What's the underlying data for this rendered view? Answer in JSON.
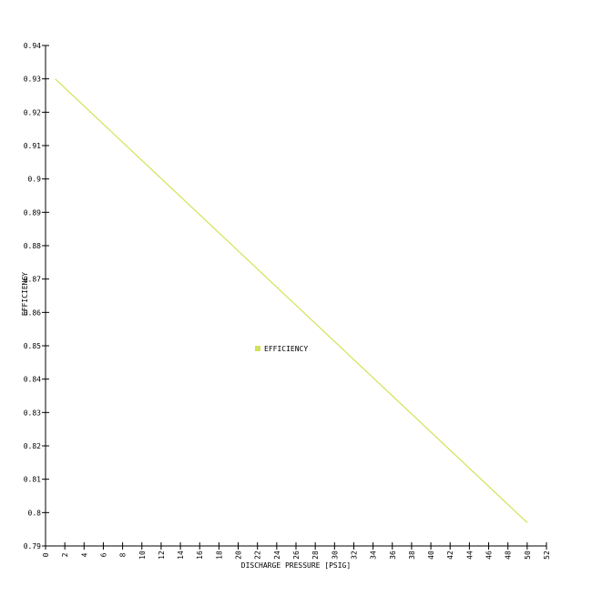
{
  "chart_data": {
    "type": "line",
    "title": "",
    "xlabel": "DISCHARGE PRESSURE [PSIG]",
    "ylabel": "EFFICIENCY",
    "xlim": [
      0,
      52
    ],
    "ylim": [
      0.79,
      0.94
    ],
    "x_ticks": [
      0,
      2,
      4,
      6,
      8,
      10,
      12,
      14,
      16,
      18,
      20,
      22,
      24,
      26,
      28,
      30,
      32,
      34,
      36,
      38,
      40,
      42,
      44,
      46,
      48,
      50,
      52
    ],
    "y_ticks": [
      0.79,
      0.8,
      0.81,
      0.82,
      0.83,
      0.84,
      0.85,
      0.86,
      0.87,
      0.88,
      0.89,
      0.9,
      0.91,
      0.92,
      0.93,
      0.94
    ],
    "x_tick_labels": [
      "0",
      "2",
      "4",
      "6",
      "8",
      "10",
      "12",
      "14",
      "16",
      "18",
      "20",
      "22",
      "24",
      "26",
      "28",
      "30",
      "32",
      "34",
      "36",
      "38",
      "40",
      "42",
      "44",
      "46",
      "48",
      "50",
      "52"
    ],
    "y_tick_labels": [
      "0.79",
      "0.8",
      "0.81",
      "0.82",
      "0.83",
      "0.84",
      "0.85",
      "0.86",
      "0.87",
      "0.88",
      "0.89",
      "0.9",
      "0.91",
      "0.92",
      "0.93",
      "0.94"
    ],
    "grid": false,
    "legend_placement": "center",
    "series": [
      {
        "name": "EFFICIENCY",
        "color": "#d4e157",
        "x": [
          1,
          50
        ],
        "y": [
          0.93,
          0.797
        ]
      }
    ]
  }
}
